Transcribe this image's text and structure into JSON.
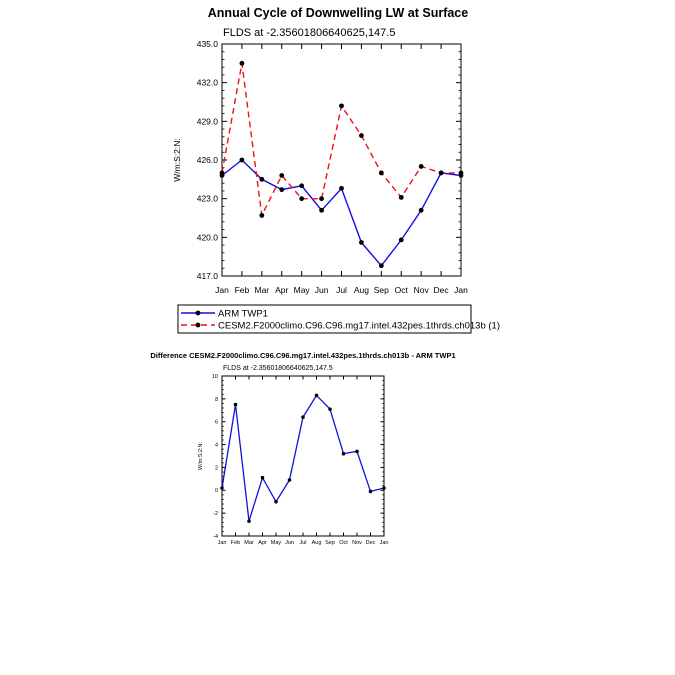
{
  "chart_data": [
    {
      "type": "line",
      "title": "Annual Cycle of Downwelling LW at Surface",
      "subtitle": "FLDS at -2.35601806640625,147.5",
      "ylabel": "W/m:S:2:N:",
      "xlabel": "",
      "categories": [
        "Jan",
        "Feb",
        "Mar",
        "Apr",
        "May",
        "Jun",
        "Jul",
        "Aug",
        "Sep",
        "Oct",
        "Nov",
        "Dec",
        "Jan"
      ],
      "ylim": [
        417.0,
        435.0
      ],
      "yticks": [
        "417.0",
        "420.0",
        "423.0",
        "426.0",
        "429.0",
        "432.0",
        "435.0"
      ],
      "grid": false,
      "legend_placement": "below",
      "series": [
        {
          "name": "ARM TWP1",
          "color": "#1010e0",
          "dash": "solid",
          "values": [
            424.8,
            426.0,
            424.5,
            423.7,
            424.0,
            422.1,
            423.8,
            419.6,
            417.8,
            419.8,
            422.1,
            425.0,
            424.8
          ]
        },
        {
          "name": "CESM2.F2000climo.C96.C96.mg17.intel.432pes.1thrds.ch013b (1)",
          "color": "#ee1111",
          "dash": "dashed",
          "values": [
            425.0,
            433.5,
            421.7,
            424.8,
            423.0,
            423.0,
            430.2,
            427.9,
            425.0,
            423.1,
            425.5,
            425.0,
            425.0
          ]
        }
      ]
    },
    {
      "type": "line",
      "title": "Difference CESM2.F2000climo.C96.C96.mg17.intel.432pes.1thrds.ch013b - ARM TWP1",
      "subtitle": "FLDS at -2.35601806640625,147.5",
      "ylabel": "W/m:S:2:N:",
      "xlabel": "",
      "categories": [
        "Jan",
        "Feb",
        "Mar",
        "Apr",
        "May",
        "Jun",
        "Jul",
        "Aug",
        "Sep",
        "Oct",
        "Nov",
        "Dec",
        "Jan"
      ],
      "ylim": [
        -4,
        10
      ],
      "yticks": [
        "-4",
        "-2",
        "0",
        "2",
        "4",
        "6",
        "8",
        "10"
      ],
      "grid": false,
      "series": [
        {
          "name": "",
          "color": "#1010e0",
          "dash": "solid",
          "values": [
            0.2,
            7.5,
            -2.7,
            1.1,
            -1.0,
            0.9,
            6.4,
            8.3,
            7.1,
            3.2,
            3.4,
            -0.1,
            0.2
          ]
        }
      ]
    }
  ]
}
